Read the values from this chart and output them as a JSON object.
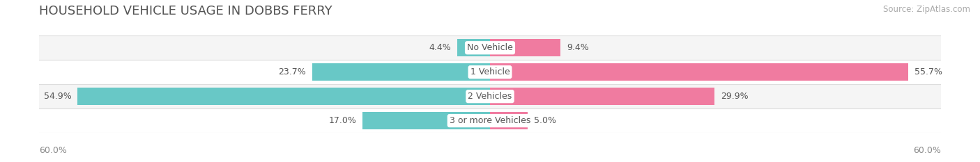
{
  "title": "HOUSEHOLD VEHICLE USAGE IN DOBBS FERRY",
  "source": "Source: ZipAtlas.com",
  "categories": [
    "No Vehicle",
    "1 Vehicle",
    "2 Vehicles",
    "3 or more Vehicles"
  ],
  "owner_values": [
    4.4,
    23.7,
    54.9,
    17.0
  ],
  "renter_values": [
    9.4,
    55.7,
    29.9,
    5.0
  ],
  "owner_color": "#68C8C6",
  "renter_color": "#F07BA0",
  "xlim": [
    -60,
    60
  ],
  "bar_height": 0.72,
  "background_color": "#ffffff",
  "row_colors": [
    "#f5f5f5",
    "#ffffff",
    "#f5f5f5",
    "#ffffff"
  ],
  "separator_color": "#dddddd",
  "title_fontsize": 13,
  "source_fontsize": 8.5,
  "value_fontsize": 9,
  "label_fontsize": 9,
  "legend_fontsize": 9.5,
  "axis_label_color": "#888888",
  "value_color": "#555555",
  "title_color": "#555555",
  "center_label_color": "#555555"
}
